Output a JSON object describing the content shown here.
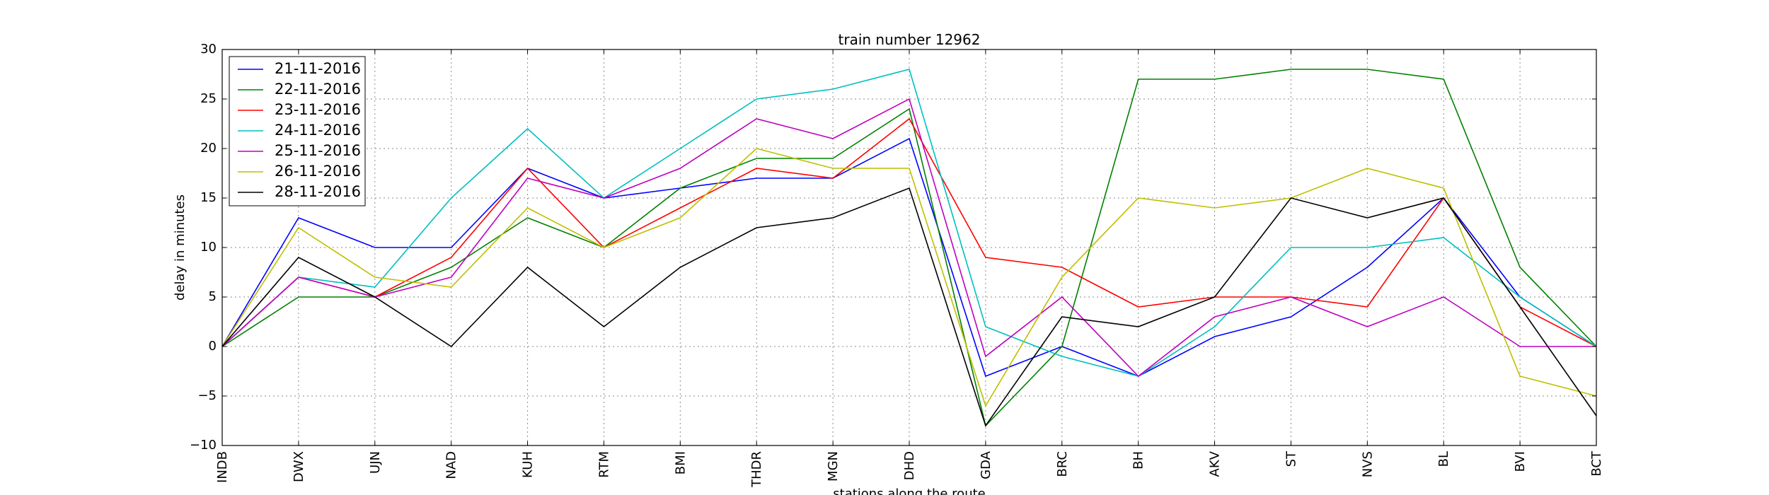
{
  "chart_data": {
    "type": "line",
    "title": "train number 12962",
    "xlabel": "stations along the route",
    "ylabel": "delay in minutes",
    "ylim": [
      -10,
      30
    ],
    "yticks": [
      -10,
      -5,
      0,
      5,
      10,
      15,
      20,
      25,
      30
    ],
    "ytick_labels": [
      "−10",
      "−5",
      "0",
      "5",
      "10",
      "15",
      "20",
      "25",
      "30"
    ],
    "grid": true,
    "legend_position": "top-left",
    "categories": [
      "INDB",
      "DWX",
      "UJN",
      "NAD",
      "KUH",
      "RTM",
      "BMI",
      "THDR",
      "MGN",
      "DHD",
      "GDA",
      "BRC",
      "BH",
      "AKV",
      "ST",
      "NVS",
      "BL",
      "BVI",
      "BCT"
    ],
    "series": [
      {
        "name": "21-11-2016",
        "color": "#0000ff",
        "values": [
          0,
          13,
          10,
          10,
          18,
          15,
          16,
          17,
          17,
          21,
          -3,
          0,
          -3,
          1,
          3,
          8,
          15,
          5,
          0
        ]
      },
      {
        "name": "22-11-2016",
        "color": "#008000",
        "values": [
          0,
          5,
          5,
          8,
          13,
          10,
          16,
          19,
          19,
          24,
          -8,
          0,
          27,
          27,
          28,
          28,
          27,
          8,
          0
        ]
      },
      {
        "name": "23-11-2016",
        "color": "#ff0000",
        "values": [
          0,
          7,
          5,
          9,
          18,
          10,
          14,
          18,
          17,
          23,
          9,
          8,
          4,
          5,
          5,
          4,
          15,
          4,
          0
        ]
      },
      {
        "name": "24-11-2016",
        "color": "#00bfbf",
        "values": [
          0,
          7,
          6,
          15,
          22,
          15,
          20,
          25,
          26,
          28,
          2,
          -1,
          -3,
          2,
          10,
          10,
          11,
          5,
          0
        ]
      },
      {
        "name": "25-11-2016",
        "color": "#bf00bf",
        "values": [
          0,
          7,
          5,
          7,
          17,
          15,
          18,
          23,
          21,
          25,
          -1,
          5,
          -3,
          3,
          5,
          2,
          5,
          0,
          0
        ]
      },
      {
        "name": "26-11-2016",
        "color": "#bfbf00",
        "values": [
          0,
          12,
          7,
          6,
          14,
          10,
          13,
          20,
          18,
          18,
          -6,
          7,
          15,
          14,
          15,
          18,
          16,
          -3,
          -5
        ]
      },
      {
        "name": "28-11-2016",
        "color": "#000000",
        "values": [
          0,
          9,
          5,
          0,
          8,
          2,
          8,
          12,
          13,
          16,
          -8,
          3,
          2,
          5,
          15,
          13,
          15,
          4,
          -7
        ]
      }
    ]
  }
}
